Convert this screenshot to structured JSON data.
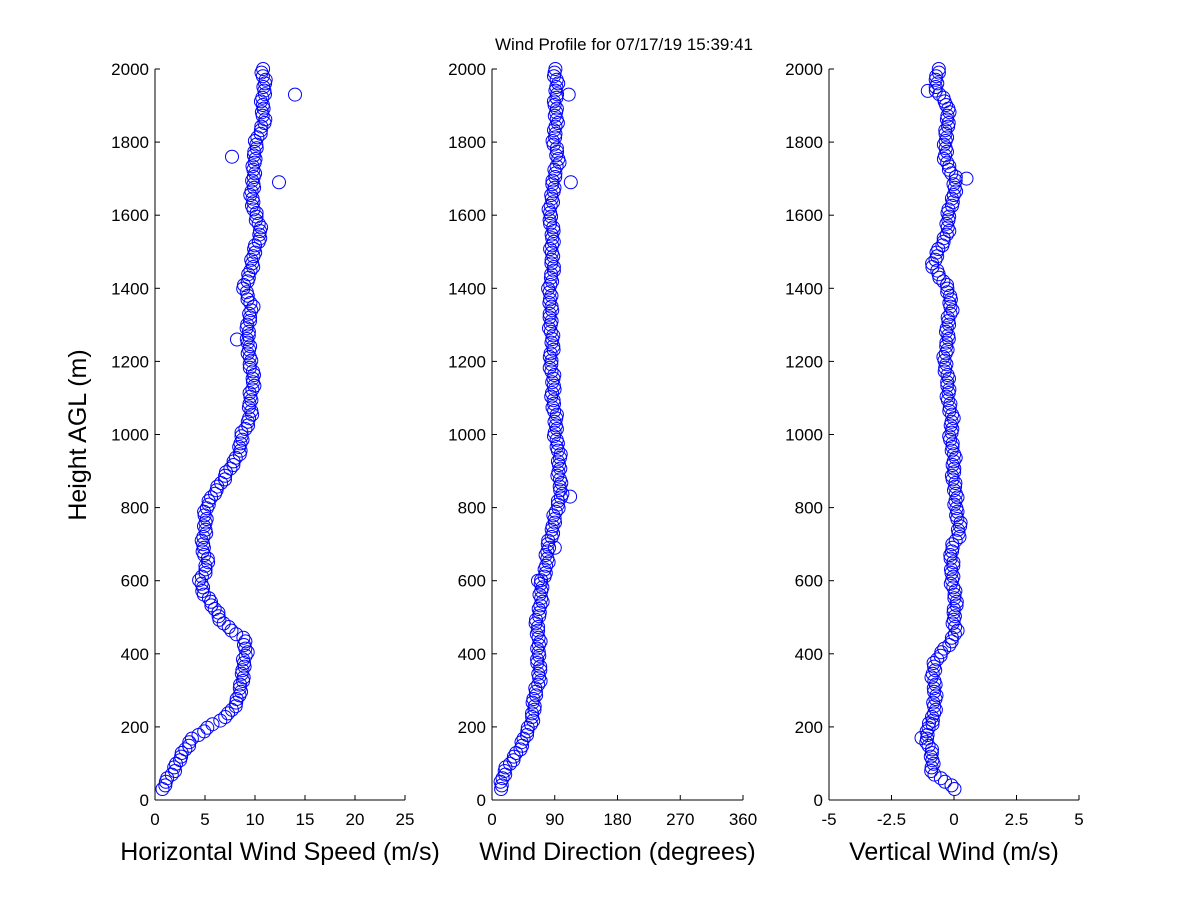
{
  "title": "Wind Profile for  07/17/19 15:39:41",
  "ylabel": "Height AGL (m)",
  "chart_data": [
    {
      "type": "scatter",
      "name": "horizontal-wind-speed",
      "xlabel": "Horizontal Wind Speed (m/s)",
      "ylabel": "Height AGL (m)",
      "xlim": [
        0,
        25
      ],
      "ylim": [
        0,
        2000
      ],
      "xticks": [
        "0",
        "5",
        "10",
        "15",
        "20",
        "25"
      ],
      "yticks": [
        "0",
        "200",
        "400",
        "600",
        "800",
        "1000",
        "1200",
        "1400",
        "1600",
        "1800",
        "2000"
      ],
      "marker": "o",
      "color": "#0000ff",
      "profile": [
        [
          0,
          0.2
        ],
        [
          40,
          0.8
        ],
        [
          80,
          2
        ],
        [
          120,
          2.5
        ],
        [
          160,
          3.5
        ],
        [
          200,
          5.5
        ],
        [
          240,
          7.5
        ],
        [
          280,
          8.5
        ],
        [
          320,
          8.6
        ],
        [
          360,
          8.8
        ],
        [
          400,
          9.2
        ],
        [
          440,
          8.8
        ],
        [
          480,
          7
        ],
        [
          520,
          6
        ],
        [
          560,
          5
        ],
        [
          600,
          4.6
        ],
        [
          650,
          5.2
        ],
        [
          700,
          4.8
        ],
        [
          760,
          5
        ],
        [
          800,
          5.2
        ],
        [
          840,
          5.8
        ],
        [
          880,
          7
        ],
        [
          920,
          7.8
        ],
        [
          960,
          8.5
        ],
        [
          1000,
          8.8
        ],
        [
          1050,
          9.5
        ],
        [
          1100,
          9.6
        ],
        [
          1150,
          9.8
        ],
        [
          1200,
          9.6
        ],
        [
          1250,
          9.2
        ],
        [
          1300,
          9.4
        ],
        [
          1350,
          9.6
        ],
        [
          1400,
          9
        ],
        [
          1450,
          9.5
        ],
        [
          1500,
          10
        ],
        [
          1550,
          10.5
        ],
        [
          1600,
          10.2
        ],
        [
          1650,
          9.5
        ],
        [
          1700,
          10
        ],
        [
          1750,
          9.8
        ],
        [
          1800,
          10.2
        ],
        [
          1850,
          10.8
        ],
        [
          1900,
          10.8
        ],
        [
          1950,
          10.9
        ],
        [
          2000,
          10.8
        ]
      ],
      "outliers": [
        [
          1930,
          14
        ],
        [
          1760,
          7.7
        ],
        [
          1690,
          12.4
        ],
        [
          1260,
          8.2
        ]
      ]
    },
    {
      "type": "scatter",
      "name": "wind-direction",
      "xlabel": "Wind Direction (degrees)",
      "ylabel": "Height AGL (m)",
      "xlim": [
        0,
        360
      ],
      "ylim": [
        0,
        2000
      ],
      "xticks": [
        "0",
        "90",
        "180",
        "270",
        "360"
      ],
      "yticks": [
        "0",
        "200",
        "400",
        "600",
        "800",
        "1000",
        "1200",
        "1400",
        "1600",
        "1800",
        "2000"
      ],
      "marker": "o",
      "color": "#0000ff",
      "profile": [
        [
          0,
          3
        ],
        [
          40,
          12
        ],
        [
          80,
          20
        ],
        [
          120,
          32
        ],
        [
          160,
          45
        ],
        [
          200,
          55
        ],
        [
          240,
          58
        ],
        [
          280,
          62
        ],
        [
          320,
          66
        ],
        [
          360,
          68
        ],
        [
          400,
          67
        ],
        [
          440,
          66
        ],
        [
          480,
          65
        ],
        [
          520,
          68
        ],
        [
          560,
          70
        ],
        [
          600,
          73
        ],
        [
          650,
          78
        ],
        [
          700,
          82
        ],
        [
          760,
          88
        ],
        [
          800,
          95
        ],
        [
          840,
          98
        ],
        [
          900,
          97
        ],
        [
          950,
          95
        ],
        [
          1000,
          92
        ],
        [
          1050,
          90
        ],
        [
          1100,
          88
        ],
        [
          1150,
          87
        ],
        [
          1200,
          85
        ],
        [
          1250,
          86
        ],
        [
          1300,
          85
        ],
        [
          1350,
          83
        ],
        [
          1400,
          84
        ],
        [
          1450,
          86
        ],
        [
          1500,
          87
        ],
        [
          1550,
          86
        ],
        [
          1600,
          84
        ],
        [
          1650,
          85
        ],
        [
          1700,
          90
        ],
        [
          1750,
          94
        ],
        [
          1800,
          90
        ],
        [
          1850,
          91
        ],
        [
          1900,
          92
        ],
        [
          1950,
          92
        ],
        [
          2000,
          90
        ]
      ],
      "outliers": [
        [
          830,
          112
        ],
        [
          1690,
          113
        ],
        [
          1930,
          110
        ],
        [
          690,
          90
        ],
        [
          600,
          66
        ]
      ]
    },
    {
      "type": "scatter",
      "name": "vertical-wind",
      "xlabel": "Vertical Wind (m/s)",
      "ylabel": "Height AGL (m)",
      "xlim": [
        -5,
        5
      ],
      "ylim": [
        0,
        2000
      ],
      "xticks": [
        "-5",
        "-2.5",
        "0",
        "2.5",
        "5"
      ],
      "yticks": [
        "0",
        "200",
        "400",
        "600",
        "800",
        "1000",
        "1200",
        "1400",
        "1600",
        "1800",
        "2000"
      ],
      "marker": "o",
      "color": "#0000ff",
      "profile": [
        [
          0,
          0
        ],
        [
          40,
          -0.1
        ],
        [
          70,
          -0.8
        ],
        [
          120,
          -0.9
        ],
        [
          170,
          -1.1
        ],
        [
          210,
          -0.9
        ],
        [
          250,
          -0.8
        ],
        [
          290,
          -0.7
        ],
        [
          340,
          -0.9
        ],
        [
          380,
          -0.7
        ],
        [
          420,
          -0.3
        ],
        [
          460,
          0.1
        ],
        [
          500,
          0
        ],
        [
          560,
          0.05
        ],
        [
          620,
          -0.1
        ],
        [
          680,
          -0.1
        ],
        [
          720,
          0.15
        ],
        [
          760,
          0.2
        ],
        [
          800,
          0.1
        ],
        [
          860,
          0
        ],
        [
          920,
          0
        ],
        [
          980,
          -0.1
        ],
        [
          1040,
          -0.1
        ],
        [
          1100,
          -0.2
        ],
        [
          1160,
          -0.3
        ],
        [
          1220,
          -0.35
        ],
        [
          1280,
          -0.25
        ],
        [
          1340,
          -0.15
        ],
        [
          1400,
          -0.2
        ],
        [
          1460,
          -0.9
        ],
        [
          1500,
          -0.6
        ],
        [
          1550,
          -0.3
        ],
        [
          1600,
          -0.2
        ],
        [
          1650,
          -0.05
        ],
        [
          1700,
          0.1
        ],
        [
          1750,
          -0.4
        ],
        [
          1800,
          -0.3
        ],
        [
          1850,
          -0.3
        ],
        [
          1900,
          -0.2
        ],
        [
          1950,
          -0.8
        ],
        [
          2000,
          -0.6
        ]
      ],
      "outliers": [
        [
          1700,
          0.5
        ],
        [
          1940,
          -1.05
        ],
        [
          210,
          -1.0
        ],
        [
          170,
          -1.3
        ]
      ]
    }
  ]
}
